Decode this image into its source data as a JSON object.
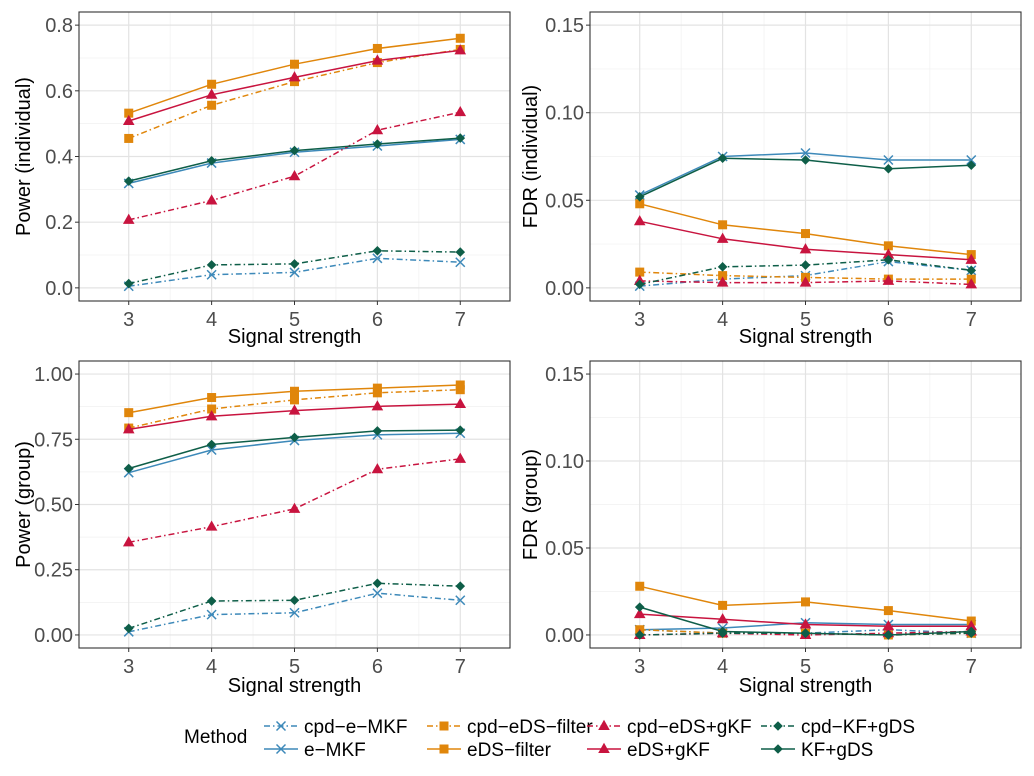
{
  "figure": {
    "legend_title": "Method"
  },
  "methods": [
    {
      "key": "cpd-e-MKF",
      "label": "cpd−e−MKF",
      "color": "#3d89b9",
      "marker": "x",
      "dashed": true
    },
    {
      "key": "e-MKF",
      "label": "e−MKF",
      "color": "#3d89b9",
      "marker": "x",
      "dashed": false
    },
    {
      "key": "cpd-eDS-filter",
      "label": "cpd−eDS−filter",
      "color": "#e0860b",
      "marker": "square",
      "dashed": true
    },
    {
      "key": "eDS-filter",
      "label": "eDS−filter",
      "color": "#e0860b",
      "marker": "square",
      "dashed": false
    },
    {
      "key": "cpd-eDS+gKF",
      "label": "cpd−eDS+gKF",
      "color": "#c8143f",
      "marker": "triangle",
      "dashed": true
    },
    {
      "key": "eDS+gKF",
      "label": "eDS+gKF",
      "color": "#c8143f",
      "marker": "triangle",
      "dashed": false
    },
    {
      "key": "cpd-KF+gDS",
      "label": "cpd−KF+gDS",
      "color": "#0e5e48",
      "marker": "diamond",
      "dashed": true
    },
    {
      "key": "KF+gDS",
      "label": "KF+gDS",
      "color": "#0e5e48",
      "marker": "diamond",
      "dashed": false
    }
  ],
  "legend_order": [
    "cpd-e-MKF",
    "cpd-eDS-filter",
    "cpd-eDS+gKF",
    "cpd-KF+gDS",
    "e-MKF",
    "eDS-filter",
    "eDS+gKF",
    "KF+gDS"
  ],
  "chart_data": [
    {
      "id": "power-individual",
      "type": "line",
      "xlabel": "Signal strength",
      "ylabel": "Power (individual)",
      "x": [
        3,
        4,
        5,
        6,
        7
      ],
      "xlim": [
        2.4,
        7.6
      ],
      "ylim": [
        -0.04,
        0.84
      ],
      "xticks": [
        3,
        4,
        5,
        6,
        7
      ],
      "yticks": [
        0,
        0.2,
        0.4,
        0.6,
        0.8
      ],
      "ytick_labels": [
        "0.0",
        "0.2",
        "0.4",
        "0.6",
        "0.8"
      ],
      "series": [
        {
          "name": "cpd-e-MKF",
          "values": [
            0.005,
            0.04,
            0.047,
            0.09,
            0.078
          ]
        },
        {
          "name": "e-MKF",
          "values": [
            0.318,
            0.38,
            0.413,
            0.432,
            0.452
          ]
        },
        {
          "name": "cpd-eDS-filter",
          "values": [
            0.455,
            0.556,
            0.628,
            0.686,
            0.726
          ]
        },
        {
          "name": "eDS-filter",
          "values": [
            0.532,
            0.62,
            0.681,
            0.729,
            0.76
          ]
        },
        {
          "name": "cpd-eDS+gKF",
          "values": [
            0.207,
            0.266,
            0.34,
            0.48,
            0.535
          ]
        },
        {
          "name": "eDS+gKF",
          "values": [
            0.508,
            0.588,
            0.641,
            0.692,
            0.723
          ]
        },
        {
          "name": "cpd-KF+gDS",
          "values": [
            0.013,
            0.07,
            0.073,
            0.113,
            0.109
          ]
        },
        {
          "name": "KF+gDS",
          "values": [
            0.325,
            0.387,
            0.418,
            0.438,
            0.456
          ]
        }
      ]
    },
    {
      "id": "fdr-individual",
      "type": "line",
      "xlabel": "Signal strength",
      "ylabel": "FDR (individual)",
      "x": [
        3,
        4,
        5,
        6,
        7
      ],
      "xlim": [
        2.4,
        7.6
      ],
      "ylim": [
        -0.0075,
        0.1575
      ],
      "xticks": [
        3,
        4,
        5,
        6,
        7
      ],
      "yticks": [
        0,
        0.05,
        0.1,
        0.15
      ],
      "ytick_labels": [
        "0.00",
        "0.05",
        "0.10",
        "0.15"
      ],
      "series": [
        {
          "name": "cpd-e-MKF",
          "values": [
            0.001,
            0.005,
            0.007,
            0.015,
            0.01
          ]
        },
        {
          "name": "e-MKF",
          "values": [
            0.053,
            0.075,
            0.077,
            0.073,
            0.073
          ]
        },
        {
          "name": "cpd-eDS-filter",
          "values": [
            0.009,
            0.007,
            0.006,
            0.005,
            0.005
          ]
        },
        {
          "name": "eDS-filter",
          "values": [
            0.048,
            0.036,
            0.031,
            0.024,
            0.019
          ]
        },
        {
          "name": "cpd-eDS+gKF",
          "values": [
            0.004,
            0.003,
            0.003,
            0.004,
            0.002
          ]
        },
        {
          "name": "eDS+gKF",
          "values": [
            0.038,
            0.028,
            0.022,
            0.019,
            0.016
          ]
        },
        {
          "name": "cpd-KF+gDS",
          "values": [
            0.002,
            0.012,
            0.013,
            0.016,
            0.01
          ]
        },
        {
          "name": "KF+gDS",
          "values": [
            0.052,
            0.074,
            0.073,
            0.068,
            0.07
          ]
        }
      ]
    },
    {
      "id": "power-group",
      "type": "line",
      "xlabel": "Signal strength",
      "ylabel": "Power (group)",
      "x": [
        3,
        4,
        5,
        6,
        7
      ],
      "xlim": [
        2.4,
        7.6
      ],
      "ylim": [
        -0.05,
        1.05
      ],
      "xticks": [
        3,
        4,
        5,
        6,
        7
      ],
      "yticks": [
        0,
        0.25,
        0.5,
        0.75,
        1.0
      ],
      "ytick_labels": [
        "0.00",
        "0.25",
        "0.50",
        "0.75",
        "1.00"
      ],
      "series": [
        {
          "name": "cpd-e-MKF",
          "values": [
            0.012,
            0.078,
            0.085,
            0.16,
            0.133
          ]
        },
        {
          "name": "e-MKF",
          "values": [
            0.622,
            0.709,
            0.745,
            0.767,
            0.773
          ]
        },
        {
          "name": "cpd-eDS-filter",
          "values": [
            0.793,
            0.866,
            0.901,
            0.928,
            0.94
          ]
        },
        {
          "name": "eDS-filter",
          "values": [
            0.852,
            0.91,
            0.934,
            0.946,
            0.958
          ]
        },
        {
          "name": "cpd-eDS+gKF",
          "values": [
            0.355,
            0.415,
            0.483,
            0.635,
            0.675
          ]
        },
        {
          "name": "eDS+gKF",
          "values": [
            0.788,
            0.838,
            0.86,
            0.876,
            0.885
          ]
        },
        {
          "name": "cpd-KF+gDS",
          "values": [
            0.025,
            0.13,
            0.133,
            0.198,
            0.187
          ]
        },
        {
          "name": "KF+gDS",
          "values": [
            0.638,
            0.73,
            0.757,
            0.782,
            0.785
          ]
        }
      ]
    },
    {
      "id": "fdr-group",
      "type": "line",
      "xlabel": "Signal strength",
      "ylabel": "FDR (group)",
      "x": [
        3,
        4,
        5,
        6,
        7
      ],
      "xlim": [
        2.4,
        7.6
      ],
      "ylim": [
        -0.0075,
        0.1575
      ],
      "xticks": [
        3,
        4,
        5,
        6,
        7
      ],
      "yticks": [
        0,
        0.05,
        0.1,
        0.15
      ],
      "ytick_labels": [
        "0.00",
        "0.05",
        "0.10",
        "0.15"
      ],
      "series": [
        {
          "name": "cpd-e-MKF",
          "values": [
            0.003,
            0.001,
            0.001,
            0.003,
            0.001
          ]
        },
        {
          "name": "e-MKF",
          "values": [
            0.003,
            0.004,
            0.007,
            0.006,
            0.006
          ]
        },
        {
          "name": "cpd-eDS-filter",
          "values": [
            0.003,
            0.001,
            0.001,
            0.0,
            0.001
          ]
        },
        {
          "name": "eDS-filter",
          "values": [
            0.028,
            0.017,
            0.019,
            0.014,
            0.008
          ]
        },
        {
          "name": "cpd-eDS+gKF",
          "values": [
            0.0,
            0.001,
            0.0,
            0.001,
            0.002
          ]
        },
        {
          "name": "eDS+gKF",
          "values": [
            0.012,
            0.009,
            0.006,
            0.005,
            0.005
          ]
        },
        {
          "name": "cpd-KF+gDS",
          "values": [
            0.0,
            0.001,
            0.001,
            0.0,
            0.001
          ]
        },
        {
          "name": "KF+gDS",
          "values": [
            0.016,
            0.002,
            0.001,
            0.0,
            0.002
          ]
        }
      ]
    }
  ]
}
